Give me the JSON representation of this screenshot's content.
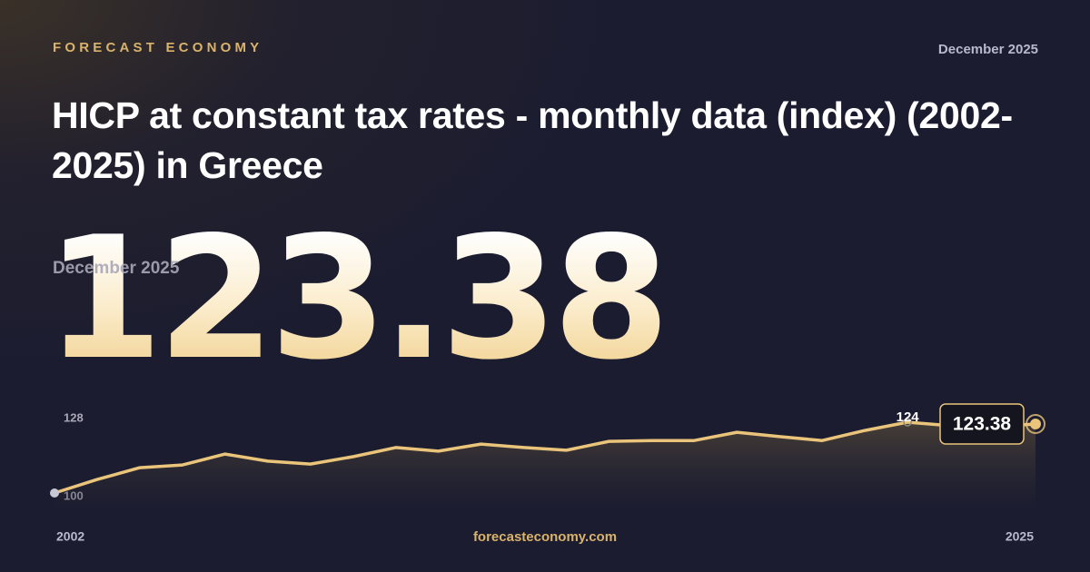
{
  "brand": "FORECAST ECONOMY",
  "date": "December 2025",
  "source": "forecasteconomy.com",
  "chart_data": {
    "type": "area-line",
    "title": "HICP at constant tax rates - monthly data (index) (2002-2025) in Greece",
    "x": [
      2002,
      2003,
      2004,
      2005,
      2006,
      2007,
      2008,
      2009,
      2010,
      2011,
      2012,
      2013,
      2014,
      2015,
      2016,
      2017,
      2018,
      2019,
      2020,
      2021,
      2022,
      2023,
      2024,
      2025
    ],
    "series": [
      {
        "name": "HICP at constant tax rates",
        "color": "#e9c47a",
        "values": [
          100,
          104.6,
          108.6,
          109.5,
          113.2,
          110.8,
          109.8,
          112.3,
          115.4,
          114.2,
          116.6,
          115.4,
          114.5,
          117.5,
          117.8,
          117.8,
          120.6,
          119.1,
          117.8,
          121.2,
          124,
          122.8,
          122.5,
          123.38
        ]
      }
    ],
    "xlim": [
      2002,
      2025
    ],
    "xticks": [
      2002,
      2025
    ],
    "ylim": [
      100,
      128
    ],
    "yticks": [
      100,
      128
    ]
  }
}
